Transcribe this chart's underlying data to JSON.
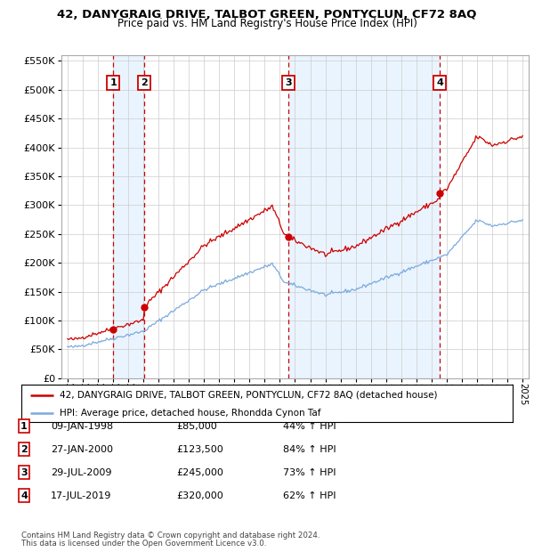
{
  "title1": "42, DANYGRAIG DRIVE, TALBOT GREEN, PONTYCLUN, CF72 8AQ",
  "title2": "Price paid vs. HM Land Registry's House Price Index (HPI)",
  "legend_line1": "42, DANYGRAIG DRIVE, TALBOT GREEN, PONTYCLUN, CF72 8AQ (detached house)",
  "legend_line2": "HPI: Average price, detached house, Rhondda Cynon Taf",
  "footer1": "Contains HM Land Registry data © Crown copyright and database right 2024.",
  "footer2": "This data is licensed under the Open Government Licence v3.0.",
  "transactions": [
    {
      "num": 1,
      "date": "09-JAN-1998",
      "price": 85000,
      "pct": "44% ↑ HPI",
      "year_f": 1998.03
    },
    {
      "num": 2,
      "date": "27-JAN-2000",
      "price": 123500,
      "pct": "84% ↑ HPI",
      "year_f": 2000.08
    },
    {
      "num": 3,
      "date": "29-JUL-2009",
      "price": 245000,
      "pct": "73% ↑ HPI",
      "year_f": 2009.57
    },
    {
      "num": 4,
      "date": "17-JUL-2019",
      "price": 320000,
      "pct": "62% ↑ HPI",
      "year_f": 2019.54
    }
  ],
  "hpi_color": "#7aaadd",
  "price_color": "#cc0000",
  "vline_color": "#cc0000",
  "shade_color": "#ddeeff",
  "box_color": "#cc0000",
  "ylim": [
    0,
    560000
  ],
  "yticks": [
    0,
    50000,
    100000,
    150000,
    200000,
    250000,
    300000,
    350000,
    400000,
    450000,
    500000,
    550000
  ],
  "xlim_start": 1994.6,
  "xlim_end": 2025.4
}
